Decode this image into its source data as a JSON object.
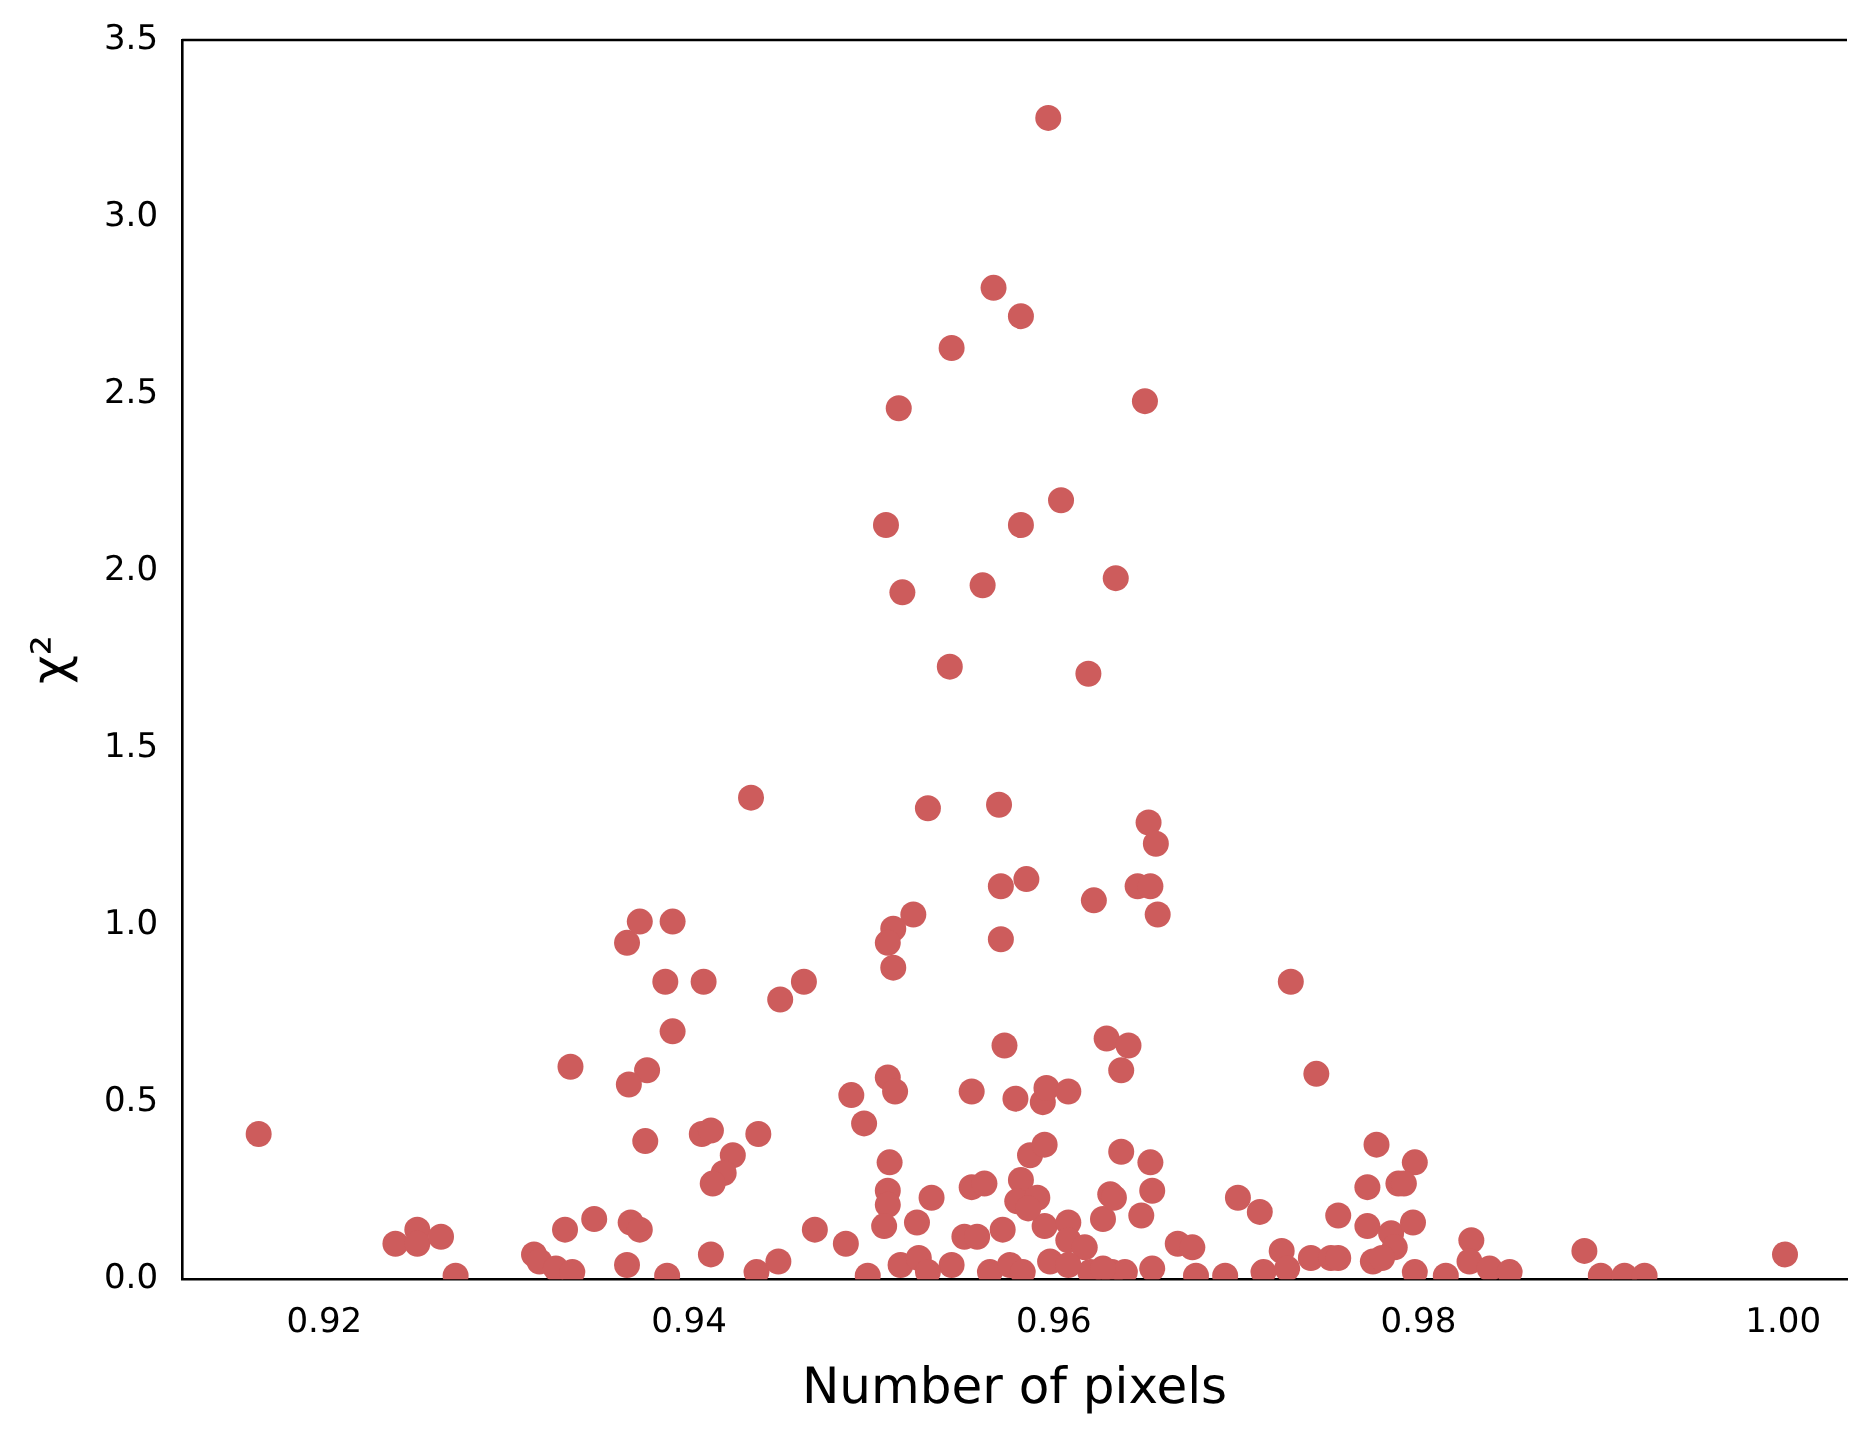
{
  "chart_data": {
    "type": "scatter",
    "xlabel": "Number of pixels",
    "ylabel": "χ²",
    "color": "#cd5c5c",
    "marker": "circle",
    "xlim": [
      0.9122,
      1.0035
    ],
    "ylim": [
      0,
      3.5
    ],
    "xticks": [
      0.92,
      0.94,
      0.96,
      0.98,
      {
        "value": 1,
        "label": "1.00"
      }
    ],
    "yticks": [
      {
        "value": 0,
        "label": "0.0"
      },
      0.5,
      {
        "value": 1,
        "label": "1.0"
      },
      1.5,
      {
        "value": 2,
        "label": "2.0"
      },
      2.5,
      {
        "value": 3,
        "label": "3.0"
      },
      3.5
    ],
    "x": [
      0.9164,
      0.9239,
      0.9251,
      0.9251,
      0.9264,
      0.9272,
      0.9315,
      0.9318,
      0.9327,
      0.9336,
      0.9335,
      0.9332,
      0.9348,
      0.9366,
      0.9368,
      0.9373,
      0.9366,
      0.9373,
      0.9391,
      0.9387,
      0.9408,
      0.9391,
      0.9377,
      0.9367,
      0.9376,
      0.9388,
      0.9434,
      0.945,
      0.9407,
      0.9412,
      0.9438,
      0.9424,
      0.9419,
      0.9413,
      0.9412,
      0.9437,
      0.9449,
      0.9531,
      0.957,
      0.9571,
      0.9585,
      0.9622,
      0.9523,
      0.9512,
      0.9509,
      0.9512,
      0.9571,
      0.9463,
      0.9573,
      0.9629,
      0.9637,
      0.9489,
      0.9509,
      0.9513,
      0.9555,
      0.9496,
      0.9579,
      0.9594,
      0.9596,
      0.9608,
      0.951,
      0.9637,
      0.9587,
      0.9595,
      0.9509,
      0.9509,
      0.9507,
      0.9533,
      0.9555,
      0.9562,
      0.9582,
      0.958,
      0.9591,
      0.9631,
      0.9627,
      0.9469,
      0.9486,
      0.9525,
      0.9551,
      0.9558,
      0.9572,
      0.9595,
      0.9608,
      0.9608,
      0.9617,
      0.9586,
      0.9498,
      0.9516,
      0.9526,
      0.9544,
      0.9565,
      0.9576,
      0.9598,
      0.962,
      0.9632,
      0.9531,
      0.9583,
      0.9608,
      0.9597,
      0.9567,
      0.9582,
      0.9544,
      0.9515,
      0.965,
      0.9508,
      0.9582,
      0.9604,
      0.9517,
      0.9561,
      0.9634,
      0.9543,
      0.9619,
      0.9652,
      0.9656,
      0.9646,
      0.9653,
      0.9657,
      0.973,
      0.9641,
      0.9744,
      0.9653,
      0.9777,
      0.9633,
      0.9654,
      0.9648,
      0.9701,
      0.9713,
      0.9756,
      0.9772,
      0.9789,
      0.9772,
      0.9785,
      0.9775,
      0.9668,
      0.9676,
      0.9725,
      0.9741,
      0.9752,
      0.9756,
      0.9639,
      0.9654,
      0.9678,
      0.9694,
      0.9715,
      0.9728,
      0.9627,
      0.9798,
      0.9792,
      0.9797,
      0.9787,
      0.978,
      0.9798,
      0.9815,
      0.9829,
      0.9828,
      0.9839,
      0.985,
      0.9891,
      0.99,
      0.9913,
      0.9924,
      1.0001
    ],
    "values": [
      0.41,
      0.1,
      0.14,
      0.1,
      0.12,
      0.01,
      0.07,
      0.05,
      0.03,
      0.02,
      0.6,
      0.14,
      0.17,
      0.04,
      0.16,
      0.14,
      0.95,
      1.01,
      1.01,
      0.84,
      0.84,
      0.7,
      0.59,
      0.55,
      0.39,
      0.01,
      1.36,
      0.79,
      0.41,
      0.42,
      0.41,
      0.35,
      0.3,
      0.27,
      0.07,
      0.02,
      0.05,
      1.33,
      1.34,
      1.11,
      1.13,
      1.07,
      1.03,
      0.99,
      0.95,
      0.88,
      0.96,
      0.84,
      0.66,
      0.68,
      0.59,
      0.52,
      0.57,
      0.53,
      0.53,
      0.44,
      0.51,
      0.5,
      0.54,
      0.53,
      0.33,
      0.36,
      0.35,
      0.38,
      0.25,
      0.21,
      0.15,
      0.23,
      0.26,
      0.27,
      0.28,
      0.22,
      0.23,
      0.24,
      0.17,
      0.14,
      0.1,
      0.16,
      0.12,
      0.12,
      0.14,
      0.15,
      0.16,
      0.11,
      0.09,
      0.2,
      0.01,
      0.04,
      0.06,
      0.04,
      0.02,
      0.04,
      0.05,
      0.02,
      0.02,
      0.02,
      0.02,
      0.04,
      3.28,
      2.8,
      2.72,
      2.63,
      2.46,
      2.48,
      2.13,
      2.13,
      2.2,
      1.94,
      1.96,
      1.98,
      1.73,
      1.71,
      1.29,
      1.23,
      1.11,
      1.11,
      1.03,
      0.84,
      0.66,
      0.58,
      0.33,
      0.38,
      0.23,
      0.25,
      0.18,
      0.23,
      0.19,
      0.18,
      0.26,
      0.27,
      0.15,
      0.13,
      0.05,
      0.1,
      0.09,
      0.08,
      0.06,
      0.06,
      0.06,
      0.02,
      0.03,
      0.01,
      0.01,
      0.02,
      0.03,
      0.03,
      0.33,
      0.27,
      0.16,
      0.09,
      0.06,
      0.02,
      0.01,
      0.11,
      0.05,
      0.03,
      0.02,
      0.08,
      0.01,
      0.01,
      0.01,
      0.07
    ]
  }
}
